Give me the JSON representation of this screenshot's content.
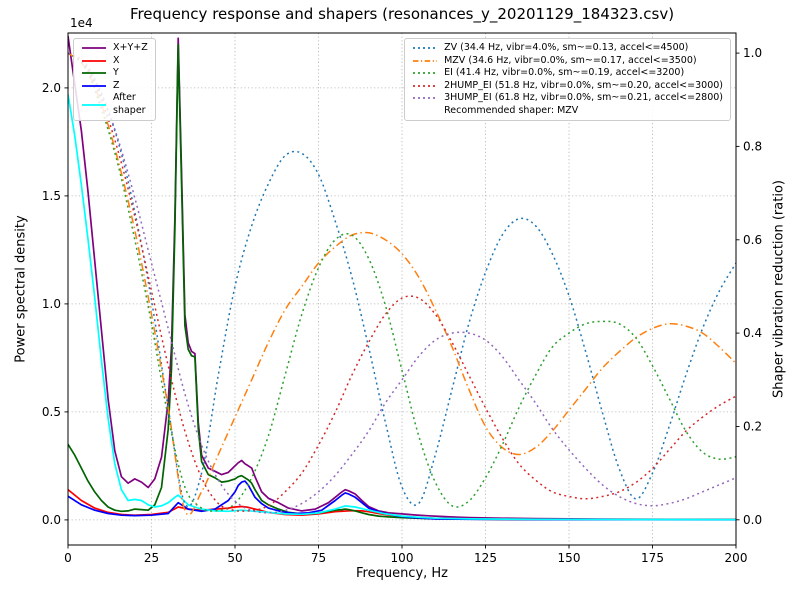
{
  "chart_data": {
    "type": "line",
    "title": "Frequency response and shapers (resonances_y_20201129_184323.csv)",
    "xlabel": "Frequency, Hz",
    "ylabel_left": "Power spectral density",
    "ylabel_right": "Shaper vibration reduction (ratio)",
    "legend_note": "Recommended shaper: MZV",
    "grid": true,
    "grid_color": "#b0b0b0",
    "x_axis": {
      "min": 0,
      "max": 200,
      "ticks": [
        0,
        25,
        50,
        75,
        100,
        125,
        150,
        175,
        200
      ]
    },
    "left_axis": {
      "min": -1160,
      "max": 22540,
      "ticks": [
        0,
        5000,
        10000,
        15000,
        20000
      ],
      "tick_labels": [
        "0.0",
        "0.5",
        "1.0",
        "1.5",
        "2.0"
      ],
      "offset_label": "1e4",
      "scale": 10000
    },
    "right_axis": {
      "min": -0.054,
      "max": 1.043,
      "ticks": [
        0,
        0.2,
        0.4,
        0.6,
        0.8,
        1.0
      ],
      "tick_labels": [
        "0.0",
        "0.2",
        "0.4",
        "0.6",
        "0.8",
        "1.0"
      ]
    },
    "series": [
      {
        "name": "X+Y+Z",
        "label": "X+Y+Z",
        "axis": "left",
        "legend": "left",
        "color": "#800080",
        "style": "solid",
        "width": 1.7,
        "x": [
          0,
          2,
          4,
          6,
          8,
          10,
          12,
          14,
          16,
          18,
          20,
          22,
          24,
          26,
          28,
          30,
          31,
          32,
          33,
          34,
          35,
          36,
          37,
          38,
          39,
          40,
          42,
          44,
          46,
          48,
          50,
          51,
          52,
          53,
          54,
          55,
          56,
          58,
          60,
          63,
          66,
          70,
          74,
          78,
          80,
          82,
          83,
          84,
          86,
          88,
          90,
          93,
          96,
          100,
          104,
          108,
          112,
          116,
          120,
          130,
          140,
          160,
          180,
          200
        ],
        "y": [
          22400,
          20200,
          18000,
          15200,
          12000,
          8800,
          5600,
          3200,
          2000,
          1700,
          1900,
          1750,
          1500,
          1900,
          2900,
          5500,
          8000,
          14000,
          22300,
          16000,
          9500,
          8200,
          7800,
          7700,
          4500,
          3000,
          2400,
          2250,
          2100,
          2200,
          2500,
          2650,
          2750,
          2600,
          2500,
          2400,
          2000,
          1300,
          1000,
          800,
          550,
          420,
          500,
          800,
          1050,
          1300,
          1400,
          1350,
          1200,
          900,
          620,
          420,
          330,
          280,
          230,
          190,
          160,
          130,
          110,
          80,
          60,
          40,
          30,
          25
        ]
      },
      {
        "name": "X",
        "label": "X",
        "axis": "left",
        "legend": "left",
        "color": "#ff0000",
        "style": "solid",
        "width": 1.7,
        "x": [
          0,
          4,
          8,
          12,
          16,
          20,
          25,
          30,
          33,
          36,
          40,
          44,
          48,
          50,
          52,
          54,
          56,
          60,
          65,
          70,
          75,
          80,
          85,
          88,
          90,
          93,
          96,
          100,
          105,
          110,
          120,
          140,
          170,
          200
        ],
        "y": [
          1400,
          900,
          550,
          350,
          250,
          220,
          250,
          350,
          600,
          500,
          450,
          500,
          550,
          600,
          620,
          580,
          500,
          350,
          250,
          220,
          280,
          380,
          430,
          420,
          380,
          300,
          230,
          170,
          110,
          70,
          40,
          25,
          15,
          10
        ]
      },
      {
        "name": "Y",
        "label": "Y",
        "axis": "left",
        "legend": "left",
        "color": "#006400",
        "style": "solid",
        "width": 1.7,
        "x": [
          0,
          2,
          4,
          6,
          8,
          10,
          12,
          14,
          16,
          18,
          20,
          22,
          24,
          26,
          28,
          30,
          31,
          32,
          33,
          34,
          35,
          36,
          37,
          38,
          39,
          40,
          42,
          44,
          46,
          48,
          50,
          51,
          52,
          53,
          54,
          55,
          56,
          58,
          60,
          63,
          66,
          70,
          74,
          78,
          80,
          82,
          83,
          84,
          86,
          88,
          90,
          93,
          96,
          100,
          104,
          108,
          112,
          116,
          120,
          130,
          140,
          160,
          180,
          200
        ],
        "y": [
          3500,
          3000,
          2400,
          1800,
          1300,
          900,
          600,
          450,
          400,
          420,
          500,
          480,
          450,
          700,
          1500,
          4200,
          7000,
          13500,
          22000,
          15500,
          9000,
          7900,
          7600,
          7550,
          4200,
          2700,
          2100,
          1950,
          1750,
          1800,
          1900,
          2000,
          2050,
          1950,
          1850,
          1700,
          1400,
          900,
          700,
          500,
          350,
          280,
          300,
          400,
          450,
          480,
          500,
          480,
          420,
          330,
          250,
          180,
          140,
          110,
          80,
          60,
          50,
          40,
          35,
          25,
          20,
          15,
          12,
          10
        ]
      },
      {
        "name": "Z",
        "label": "Z",
        "axis": "left",
        "legend": "left",
        "color": "#0000ff",
        "style": "solid",
        "width": 1.7,
        "x": [
          0,
          4,
          8,
          12,
          16,
          20,
          25,
          30,
          33,
          36,
          40,
          44,
          46,
          48,
          50,
          51,
          52,
          53,
          54,
          56,
          58,
          60,
          64,
          68,
          72,
          76,
          80,
          82,
          83,
          84,
          86,
          88,
          90,
          94,
          98,
          102,
          106,
          110,
          120,
          140,
          170,
          200
        ],
        "y": [
          1100,
          700,
          450,
          300,
          220,
          200,
          220,
          300,
          800,
          500,
          400,
          500,
          700,
          900,
          1300,
          1600,
          1750,
          1800,
          1600,
          1050,
          750,
          550,
          380,
          300,
          330,
          450,
          900,
          1150,
          1250,
          1200,
          1050,
          800,
          550,
          330,
          200,
          120,
          80,
          50,
          30,
          20,
          12,
          8
        ]
      },
      {
        "name": "After shaper",
        "label": "After\nshaper",
        "axis": "left",
        "legend": "left",
        "color": "#00ffff",
        "style": "solid",
        "width": 1.7,
        "x": [
          0,
          2,
          4,
          6,
          8,
          10,
          12,
          14,
          16,
          18,
          20,
          22,
          24,
          26,
          28,
          30,
          32,
          33,
          34,
          36,
          38,
          40,
          44,
          48,
          52,
          56,
          60,
          65,
          70,
          75,
          80,
          83,
          86,
          90,
          95,
          100,
          105,
          110,
          120,
          140,
          170,
          200
        ],
        "y": [
          19700,
          17800,
          15500,
          13000,
          10300,
          7400,
          4700,
          2600,
          1400,
          900,
          950,
          900,
          700,
          600,
          650,
          800,
          1050,
          1150,
          1000,
          700,
          600,
          500,
          420,
          400,
          450,
          400,
          350,
          280,
          260,
          320,
          500,
          650,
          600,
          450,
          280,
          180,
          120,
          80,
          50,
          30,
          20,
          15
        ]
      },
      {
        "name": "ZV",
        "label": "ZV (34.4 Hz, vibr=4.0%, sm~=0.13, accel<=4500)",
        "axis": "right",
        "legend": "right",
        "color": "#1f77b4",
        "style": "dotted",
        "width": 1.5,
        "smooth": true,
        "x": [
          0,
          5,
          10,
          15,
          20,
          25,
          30,
          35,
          40,
          45,
          50,
          55,
          60,
          65,
          70,
          75,
          80,
          85,
          90,
          95,
          100,
          105,
          110,
          115,
          120,
          125,
          130,
          135,
          140,
          145,
          150,
          155,
          160,
          165,
          170,
          175,
          180,
          185,
          190,
          195,
          200
        ],
        "y": [
          1.0,
          0.975,
          0.91,
          0.81,
          0.66,
          0.47,
          0.24,
          0.035,
          0.1,
          0.31,
          0.5,
          0.63,
          0.72,
          0.78,
          0.785,
          0.74,
          0.64,
          0.52,
          0.37,
          0.21,
          0.07,
          0.035,
          0.14,
          0.28,
          0.42,
          0.53,
          0.61,
          0.645,
          0.63,
          0.57,
          0.48,
          0.36,
          0.23,
          0.11,
          0.045,
          0.1,
          0.2,
          0.31,
          0.41,
          0.49,
          0.55
        ]
      },
      {
        "name": "MZV",
        "label": "MZV (34.6 Hz, vibr=0.0%, sm~=0.17, accel<=3500)",
        "axis": "right",
        "legend": "right",
        "color": "#ff7f0e",
        "style": "dashdot",
        "width": 1.5,
        "smooth": true,
        "x": [
          0,
          5,
          10,
          15,
          20,
          25,
          30,
          35,
          40,
          45,
          50,
          55,
          60,
          65,
          70,
          75,
          80,
          85,
          90,
          95,
          100,
          105,
          110,
          115,
          120,
          125,
          130,
          135,
          140,
          145,
          150,
          155,
          160,
          165,
          170,
          175,
          180,
          185,
          190,
          195,
          200
        ],
        "y": [
          1.0,
          0.97,
          0.89,
          0.77,
          0.62,
          0.44,
          0.24,
          0.02,
          0.06,
          0.14,
          0.22,
          0.3,
          0.38,
          0.45,
          0.5,
          0.55,
          0.585,
          0.61,
          0.615,
          0.6,
          0.57,
          0.52,
          0.45,
          0.37,
          0.28,
          0.2,
          0.155,
          0.14,
          0.155,
          0.19,
          0.235,
          0.28,
          0.325,
          0.36,
          0.39,
          0.41,
          0.42,
          0.415,
          0.4,
          0.37,
          0.335
        ]
      },
      {
        "name": "EI",
        "label": "EI (41.4 Hz, vibr=0.0%, sm~=0.19, accel<=3200)",
        "axis": "right",
        "legend": "right",
        "color": "#2ca02c",
        "style": "dotted",
        "width": 1.5,
        "smooth": true,
        "x": [
          0,
          5,
          10,
          15,
          20,
          25,
          30,
          35,
          40,
          45,
          50,
          55,
          60,
          65,
          70,
          75,
          80,
          85,
          90,
          95,
          100,
          105,
          110,
          115,
          120,
          125,
          130,
          135,
          140,
          145,
          150,
          155,
          160,
          165,
          170,
          175,
          180,
          185,
          190,
          195,
          200
        ],
        "y": [
          1.0,
          0.97,
          0.88,
          0.76,
          0.6,
          0.42,
          0.22,
          0.07,
          0.025,
          0.02,
          0.035,
          0.09,
          0.18,
          0.31,
          0.44,
          0.54,
          0.6,
          0.61,
          0.56,
          0.46,
          0.32,
          0.18,
          0.08,
          0.03,
          0.04,
          0.09,
          0.16,
          0.24,
          0.31,
          0.37,
          0.4,
          0.42,
          0.425,
          0.42,
          0.39,
          0.33,
          0.26,
          0.19,
          0.145,
          0.13,
          0.135
        ]
      },
      {
        "name": "2HUMP_EI",
        "label": "2HUMP_EI (51.8 Hz, vibr=0.0%, sm~=0.20, accel<=3000)",
        "axis": "right",
        "legend": "right",
        "color": "#d62728",
        "style": "dotted",
        "width": 1.5,
        "smooth": true,
        "x": [
          0,
          5,
          10,
          15,
          20,
          25,
          30,
          35,
          40,
          45,
          50,
          55,
          60,
          65,
          70,
          75,
          80,
          85,
          90,
          95,
          100,
          105,
          110,
          115,
          120,
          125,
          130,
          135,
          140,
          145,
          150,
          155,
          160,
          165,
          170,
          175,
          180,
          185,
          190,
          195,
          200
        ],
        "y": [
          1.0,
          0.975,
          0.9,
          0.79,
          0.65,
          0.49,
          0.33,
          0.19,
          0.09,
          0.035,
          0.02,
          0.02,
          0.03,
          0.06,
          0.1,
          0.16,
          0.23,
          0.31,
          0.38,
          0.44,
          0.475,
          0.475,
          0.44,
          0.38,
          0.31,
          0.24,
          0.175,
          0.12,
          0.085,
          0.06,
          0.05,
          0.045,
          0.05,
          0.06,
          0.08,
          0.11,
          0.15,
          0.19,
          0.22,
          0.245,
          0.265
        ]
      },
      {
        "name": "3HUMP_EI",
        "label": "3HUMP_EI (61.8 Hz, vibr=0.0%, sm~=0.21, accel<=2800)",
        "axis": "right",
        "legend": "right",
        "color": "#9467bd",
        "style": "dotted",
        "width": 1.5,
        "smooth": true,
        "x": [
          0,
          5,
          10,
          15,
          20,
          25,
          30,
          35,
          40,
          45,
          50,
          55,
          60,
          65,
          70,
          75,
          80,
          85,
          90,
          95,
          100,
          105,
          110,
          115,
          120,
          125,
          130,
          135,
          140,
          145,
          150,
          155,
          160,
          165,
          170,
          175,
          180,
          185,
          190,
          195,
          200
        ],
        "y": [
          1.0,
          0.98,
          0.915,
          0.815,
          0.69,
          0.55,
          0.41,
          0.27,
          0.16,
          0.085,
          0.04,
          0.02,
          0.015,
          0.02,
          0.035,
          0.06,
          0.095,
          0.14,
          0.19,
          0.25,
          0.3,
          0.35,
          0.385,
          0.4,
          0.4,
          0.385,
          0.35,
          0.3,
          0.25,
          0.195,
          0.15,
          0.11,
          0.075,
          0.05,
          0.035,
          0.03,
          0.035,
          0.045,
          0.06,
          0.075,
          0.09
        ]
      }
    ]
  }
}
